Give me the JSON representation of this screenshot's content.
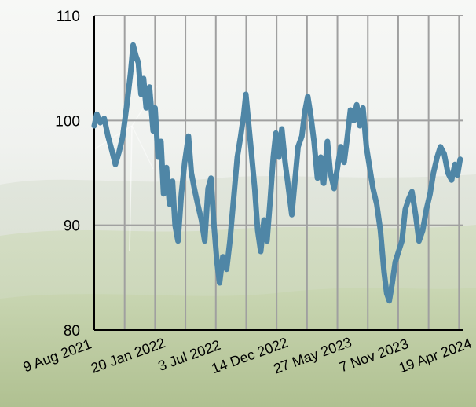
{
  "chart_data": {
    "type": "line",
    "title": "",
    "xlabel": "",
    "ylabel": "",
    "ylim": [
      80,
      110
    ],
    "yticks": [
      80,
      90,
      100,
      110
    ],
    "xticks": [
      "9 Aug 2021",
      "20 Jan 2022",
      "3 Jul 2022",
      "14 Dec 2022",
      "27 May 2023",
      "7 Nov 2023",
      "19 Apr 2024"
    ],
    "xlim": [
      "2021-08-09",
      "2024-05-01"
    ],
    "grid": true,
    "legend": "none",
    "colors": {
      "line": "#4f86a6",
      "grid": "#a0a0a0",
      "axis": "#000000"
    },
    "series": [
      {
        "points": [
          [
            "2021-08-09",
            99.5
          ],
          [
            "2021-08-16",
            100.6
          ],
          [
            "2021-08-25",
            99.8
          ],
          [
            "2021-09-05",
            100.2
          ],
          [
            "2021-09-15",
            98.5
          ],
          [
            "2021-09-25",
            97.2
          ],
          [
            "2021-10-05",
            95.8
          ],
          [
            "2021-10-15",
            97.0
          ],
          [
            "2021-10-25",
            98.5
          ],
          [
            "2021-11-05",
            101.5
          ],
          [
            "2021-11-15",
            104.5
          ],
          [
            "2021-11-22",
            107.2
          ],
          [
            "2021-11-29",
            106.2
          ],
          [
            "2021-12-06",
            105.5
          ],
          [
            "2021-12-13",
            102.5
          ],
          [
            "2021-12-20",
            104.0
          ],
          [
            "2021-12-27",
            101.2
          ],
          [
            "2022-01-05",
            103.2
          ],
          [
            "2022-01-15",
            99.0
          ],
          [
            "2022-01-20",
            101.2
          ],
          [
            "2022-01-28",
            96.5
          ],
          [
            "2022-02-05",
            98.0
          ],
          [
            "2022-02-12",
            93.0
          ],
          [
            "2022-02-20",
            95.5
          ],
          [
            "2022-02-28",
            92.0
          ],
          [
            "2022-03-08",
            94.2
          ],
          [
            "2022-03-15",
            90.0
          ],
          [
            "2022-03-23",
            88.5
          ],
          [
            "2022-04-01",
            93.0
          ],
          [
            "2022-04-10",
            96.0
          ],
          [
            "2022-04-20",
            98.5
          ],
          [
            "2022-04-28",
            95.0
          ],
          [
            "2022-05-06",
            93.5
          ],
          [
            "2022-05-15",
            92.0
          ],
          [
            "2022-05-25",
            90.5
          ],
          [
            "2022-06-03",
            88.5
          ],
          [
            "2022-06-12",
            93.5
          ],
          [
            "2022-06-20",
            94.5
          ],
          [
            "2022-06-28",
            90.0
          ],
          [
            "2022-07-06",
            86.5
          ],
          [
            "2022-07-13",
            84.5
          ],
          [
            "2022-07-22",
            87.0
          ],
          [
            "2022-08-01",
            85.8
          ],
          [
            "2022-08-10",
            88.5
          ],
          [
            "2022-08-20",
            92.5
          ],
          [
            "2022-08-30",
            96.5
          ],
          [
            "2022-09-08",
            98.5
          ],
          [
            "2022-09-16",
            100.5
          ],
          [
            "2022-09-22",
            102.5
          ],
          [
            "2022-09-30",
            99.5
          ],
          [
            "2022-10-08",
            96.5
          ],
          [
            "2022-10-16",
            93.5
          ],
          [
            "2022-10-24",
            89.5
          ],
          [
            "2022-11-01",
            87.5
          ],
          [
            "2022-11-10",
            90.5
          ],
          [
            "2022-11-18",
            88.5
          ],
          [
            "2022-11-27",
            92.5
          ],
          [
            "2022-12-05",
            96.5
          ],
          [
            "2022-12-12",
            98.8
          ],
          [
            "2022-12-20",
            96.5
          ],
          [
            "2022-12-28",
            99.2
          ],
          [
            "2023-01-06",
            96.0
          ],
          [
            "2023-01-15",
            93.5
          ],
          [
            "2023-01-24",
            91.0
          ],
          [
            "2023-02-02",
            94.5
          ],
          [
            "2023-02-10",
            97.5
          ],
          [
            "2023-02-20",
            98.5
          ],
          [
            "2023-02-28",
            100.8
          ],
          [
            "2023-03-08",
            102.3
          ],
          [
            "2023-03-16",
            100.5
          ],
          [
            "2023-03-25",
            98.0
          ],
          [
            "2023-04-03",
            94.5
          ],
          [
            "2023-04-12",
            96.5
          ],
          [
            "2023-04-20",
            94.0
          ],
          [
            "2023-04-30",
            98.0
          ],
          [
            "2023-05-08",
            95.0
          ],
          [
            "2023-05-18",
            93.5
          ],
          [
            "2023-05-27",
            95.5
          ],
          [
            "2023-06-05",
            97.5
          ],
          [
            "2023-06-14",
            96.0
          ],
          [
            "2023-06-22",
            98.2
          ],
          [
            "2023-07-01",
            101.0
          ],
          [
            "2023-07-10",
            100.0
          ],
          [
            "2023-07-18",
            101.5
          ],
          [
            "2023-07-26",
            99.5
          ],
          [
            "2023-08-04",
            101.2
          ],
          [
            "2023-08-13",
            97.5
          ],
          [
            "2023-08-22",
            95.5
          ],
          [
            "2023-08-31",
            93.5
          ],
          [
            "2023-09-10",
            92.0
          ],
          [
            "2023-09-20",
            89.5
          ],
          [
            "2023-09-30",
            85.5
          ],
          [
            "2023-10-07",
            83.5
          ],
          [
            "2023-10-14",
            82.8
          ],
          [
            "2023-10-22",
            84.5
          ],
          [
            "2023-10-30",
            86.5
          ],
          [
            "2023-11-08",
            87.5
          ],
          [
            "2023-11-17",
            88.5
          ],
          [
            "2023-11-26",
            91.5
          ],
          [
            "2023-12-05",
            92.5
          ],
          [
            "2023-12-14",
            93.2
          ],
          [
            "2023-12-24",
            91.0
          ],
          [
            "2024-01-02",
            88.5
          ],
          [
            "2024-01-12",
            89.5
          ],
          [
            "2024-01-22",
            91.5
          ],
          [
            "2024-02-01",
            93.0
          ],
          [
            "2024-02-10",
            95.0
          ],
          [
            "2024-02-20",
            96.5
          ],
          [
            "2024-02-29",
            97.5
          ],
          [
            "2024-03-10",
            96.8
          ],
          [
            "2024-03-20",
            95.0
          ],
          [
            "2024-03-30",
            94.3
          ],
          [
            "2024-04-08",
            95.8
          ],
          [
            "2024-04-15",
            94.8
          ],
          [
            "2024-04-22",
            96.3
          ]
        ]
      }
    ]
  }
}
